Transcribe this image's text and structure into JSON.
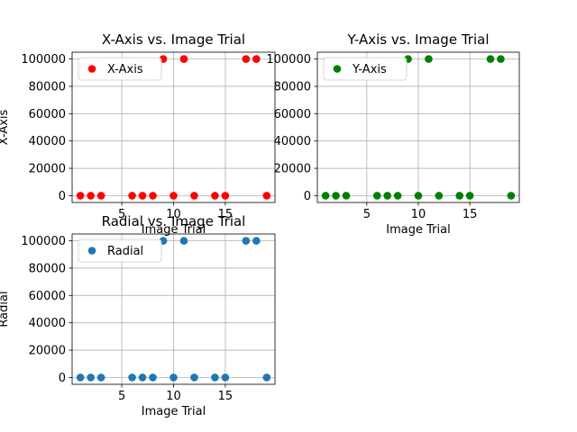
{
  "chart_data": [
    {
      "type": "scatter",
      "title": "X-Axis vs. Image Trial",
      "xlabel": "Image Trial",
      "ylabel": "X-Axis",
      "xlim": [
        0.2,
        19.8
      ],
      "ylim": [
        -5000,
        105000
      ],
      "xticks": [
        5,
        10,
        15
      ],
      "yticks": [
        0,
        20000,
        40000,
        60000,
        80000,
        100000
      ],
      "grid": true,
      "legend": "upper-left",
      "series": [
        {
          "name": "X-Axis",
          "color": "#ff0000",
          "x": [
            1,
            2,
            3,
            6,
            7,
            8,
            9,
            10,
            11,
            12,
            14,
            15,
            17,
            18,
            19
          ],
          "y": [
            0,
            0,
            0,
            0,
            0,
            0,
            100000,
            0,
            100000,
            0,
            0,
            0,
            100000,
            100000,
            0
          ]
        }
      ]
    },
    {
      "type": "scatter",
      "title": "Y-Axis vs. Image Trial",
      "xlabel": "Image Trial",
      "ylabel": "",
      "xlim": [
        0.2,
        19.8
      ],
      "ylim": [
        -5000,
        105000
      ],
      "xticks": [
        5,
        10,
        15
      ],
      "yticks": [
        0,
        20000,
        40000,
        60000,
        80000,
        100000
      ],
      "grid": true,
      "legend": "upper-left",
      "series": [
        {
          "name": "Y-Axis",
          "color": "#008000",
          "x": [
            1,
            2,
            3,
            6,
            7,
            8,
            9,
            10,
            11,
            12,
            14,
            15,
            17,
            18,
            19
          ],
          "y": [
            0,
            0,
            0,
            0,
            0,
            0,
            100000,
            0,
            100000,
            0,
            0,
            0,
            100000,
            100000,
            0
          ]
        }
      ]
    },
    {
      "type": "scatter",
      "title": "Radial vs. Image Trial",
      "xlabel": "Image Trial",
      "ylabel": "Radial",
      "xlim": [
        0.2,
        19.8
      ],
      "ylim": [
        -5000,
        105000
      ],
      "xticks": [
        5,
        10,
        15
      ],
      "yticks": [
        0,
        20000,
        40000,
        60000,
        80000,
        100000
      ],
      "grid": true,
      "legend": "upper-left",
      "series": [
        {
          "name": "Radial",
          "color": "#1f77b4",
          "x": [
            1,
            2,
            3,
            6,
            7,
            8,
            9,
            10,
            11,
            12,
            14,
            15,
            17,
            18,
            19
          ],
          "y": [
            0,
            0,
            0,
            0,
            0,
            0,
            100000,
            0,
            100000,
            0,
            0,
            0,
            100000,
            100000,
            0
          ]
        }
      ]
    }
  ]
}
